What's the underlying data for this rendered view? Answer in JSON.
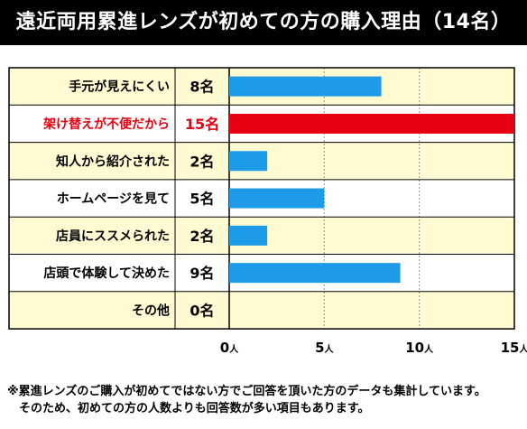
{
  "title": "遠近両用累進レンズが初めての方の購入理由（14名）",
  "chart_data": {
    "type": "bar",
    "orientation": "horizontal",
    "categories": [
      "手元が見えにくい",
      "架け替えが不便だから",
      "知人から紹介された",
      "ホームページを見て",
      "店員にススメられた",
      "店頭で体験して決めた",
      "その他"
    ],
    "values": [
      8,
      15,
      2,
      5,
      2,
      9,
      0
    ],
    "value_labels": [
      "8名",
      "15名",
      "2名",
      "5名",
      "2名",
      "9名",
      "0名"
    ],
    "x_ticks": [
      {
        "value": 0,
        "num": "0",
        "unit": "人"
      },
      {
        "value": 5,
        "num": "5",
        "unit": "人"
      },
      {
        "value": 10,
        "num": "10",
        "unit": "人"
      },
      {
        "value": 15,
        "num": "15",
        "unit": "人"
      }
    ],
    "xlim": [
      0,
      15
    ],
    "grid": true,
    "highlight_index": 1,
    "colors": {
      "bar": "#1e9be6",
      "highlight_bar": "#e60012",
      "highlight_text": "#e60012",
      "row_odd": "#fffad2",
      "row_even": "#ffffff",
      "grid": "#999999",
      "text": "#000000"
    }
  },
  "footnote": {
    "line1": "※累進レンズのご購入が初めてではない方でご回答を頂いた方のデータも集計しています。",
    "line2": "そのため、初めての方の人数よりも回答数が多い項目もあります。"
  }
}
